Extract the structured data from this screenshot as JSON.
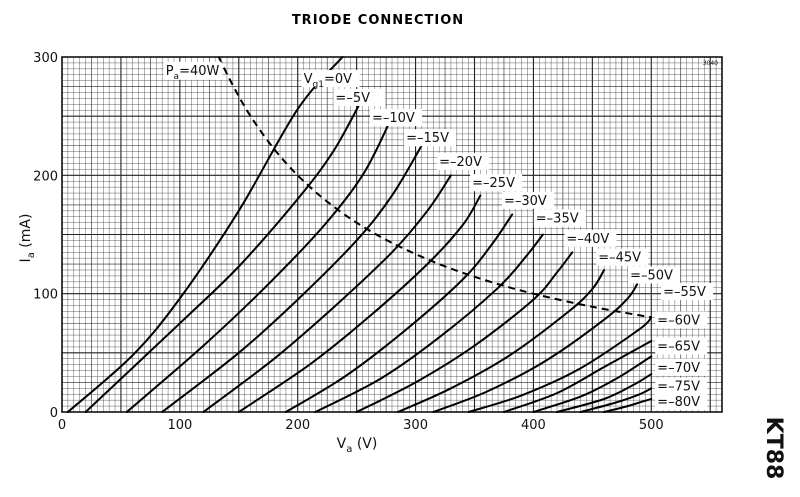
{
  "chart_data": {
    "type": "line",
    "title": "TRIODE CONNECTION",
    "side_label": "KT88",
    "corner_code": "3040",
    "xlabel": "Va (V)",
    "xlabel_main": "V",
    "xlabel_sub": "a",
    "xlabel_unit": " (V)",
    "ylabel": "Ia (mA)",
    "ylabel_main": "I",
    "ylabel_sub": "a",
    "ylabel_unit": " (mA)",
    "xlim": [
      0,
      560
    ],
    "ylim": [
      0,
      300
    ],
    "xticks": [
      0,
      100,
      200,
      300,
      400,
      500
    ],
    "xtick_labels": [
      "0",
      "100",
      "200",
      "300",
      "400",
      "500"
    ],
    "yticks": [
      0,
      100,
      200,
      300
    ],
    "ytick_labels": [
      "0",
      "100",
      "200",
      "300"
    ],
    "grid": true,
    "series": [
      {
        "name": "Vg1=0V",
        "label_main": "V",
        "label_sub": "g1",
        "label_rest": "=0V",
        "x": [
          5,
          60,
          100,
          150,
          200,
          238
        ],
        "y": [
          0,
          48,
          96,
          170,
          256,
          300
        ]
      },
      {
        "name": "=-5V",
        "label": "=–5V",
        "x": [
          20,
          100,
          150,
          200,
          230,
          255
        ],
        "y": [
          0,
          75,
          123,
          180,
          220,
          265
        ]
      },
      {
        "name": "=-10V",
        "label": "=–10V",
        "x": [
          55,
          120,
          170,
          220,
          255,
          278
        ],
        "y": [
          0,
          56,
          103,
          155,
          200,
          245
        ]
      },
      {
        "name": "=-15V",
        "label": "=–15V",
        "x": [
          85,
          150,
          200,
          250,
          280,
          305
        ],
        "y": [
          0,
          50,
          95,
          145,
          183,
          225
        ]
      },
      {
        "name": "=-20V",
        "label": "=–20V",
        "x": [
          120,
          180,
          230,
          280,
          310,
          330
        ],
        "y": [
          0,
          45,
          88,
          135,
          170,
          200
        ]
      },
      {
        "name": "=-25V",
        "label": "=–25V",
        "x": [
          150,
          210,
          260,
          310,
          340,
          355
        ],
        "y": [
          0,
          40,
          80,
          125,
          158,
          183
        ]
      },
      {
        "name": "=-30V",
        "label": "=–30V",
        "x": [
          190,
          240,
          290,
          340,
          365,
          382
        ],
        "y": [
          0,
          30,
          68,
          112,
          142,
          167
        ]
      },
      {
        "name": "=-35V",
        "label": "=–35V",
        "x": [
          215,
          270,
          320,
          370,
          395,
          408
        ],
        "y": [
          0,
          28,
          63,
          105,
          133,
          150
        ]
      },
      {
        "name": "=-40V",
        "label": "=–40V",
        "x": [
          250,
          300,
          350,
          400,
          420,
          433
        ],
        "y": [
          0,
          25,
          56,
          95,
          118,
          135
        ]
      },
      {
        "name": "=-45V",
        "label": "=–45V",
        "x": [
          285,
          330,
          380,
          430,
          450,
          460
        ],
        "y": [
          0,
          20,
          48,
          85,
          104,
          120
        ]
      },
      {
        "name": "=-50V",
        "label": "=–50V",
        "x": [
          315,
          360,
          410,
          460,
          480,
          488
        ],
        "y": [
          0,
          17,
          43,
          78,
          96,
          108
        ]
      },
      {
        "name": "=-55V",
        "label": "=–55V",
        "x": [
          345,
          390,
          440,
          490,
          500
        ],
        "y": [
          0,
          14,
          37,
          70,
          80
        ]
      },
      {
        "name": "=-60V",
        "label": "=–60V",
        "x": [
          375,
          420,
          460,
          500
        ],
        "y": [
          0,
          16,
          38,
          60
        ]
      },
      {
        "name": "=-65V",
        "label": "=–65V",
        "x": [
          400,
          440,
          470,
          500
        ],
        "y": [
          0,
          13,
          28,
          47
        ]
      },
      {
        "name": "=-70V",
        "label": "=–70V",
        "x": [
          420,
          460,
          485,
          500
        ],
        "y": [
          0,
          11,
          23,
          32
        ]
      },
      {
        "name": "=-75V",
        "label": "=–75V",
        "x": [
          440,
          470,
          490,
          500
        ],
        "y": [
          0,
          8,
          15,
          20
        ]
      },
      {
        "name": "=-80V",
        "label": "=–80V",
        "x": [
          460,
          480,
          493,
          500
        ],
        "y": [
          0,
          5,
          9,
          11
        ]
      }
    ],
    "pa_curve": {
      "name": "Pa=40W",
      "label_main": "P",
      "label_sub": "a",
      "label_rest": "=40W",
      "x": [
        133,
        140,
        150,
        160,
        175,
        190,
        205,
        225,
        250,
        280,
        320,
        360,
        400,
        450,
        500
      ],
      "y": [
        300,
        285.7,
        266.7,
        250,
        228.6,
        210.5,
        195.1,
        177.8,
        160,
        142.9,
        125,
        111.1,
        100,
        88.9,
        80
      ]
    },
    "label_positions": [
      [
        205,
        278
      ],
      [
        232,
        262
      ],
      [
        263,
        245
      ],
      [
        292,
        228
      ],
      [
        320,
        208
      ],
      [
        348,
        190
      ],
      [
        375,
        175
      ],
      [
        402,
        160
      ],
      [
        428,
        143
      ],
      [
        455,
        127
      ],
      [
        482,
        112
      ],
      [
        510,
        98
      ],
      [
        505,
        74
      ],
      [
        505,
        52
      ],
      [
        505,
        34
      ],
      [
        505,
        18
      ],
      [
        505,
        5
      ]
    ],
    "pa_label_position": [
      88,
      285
    ]
  }
}
